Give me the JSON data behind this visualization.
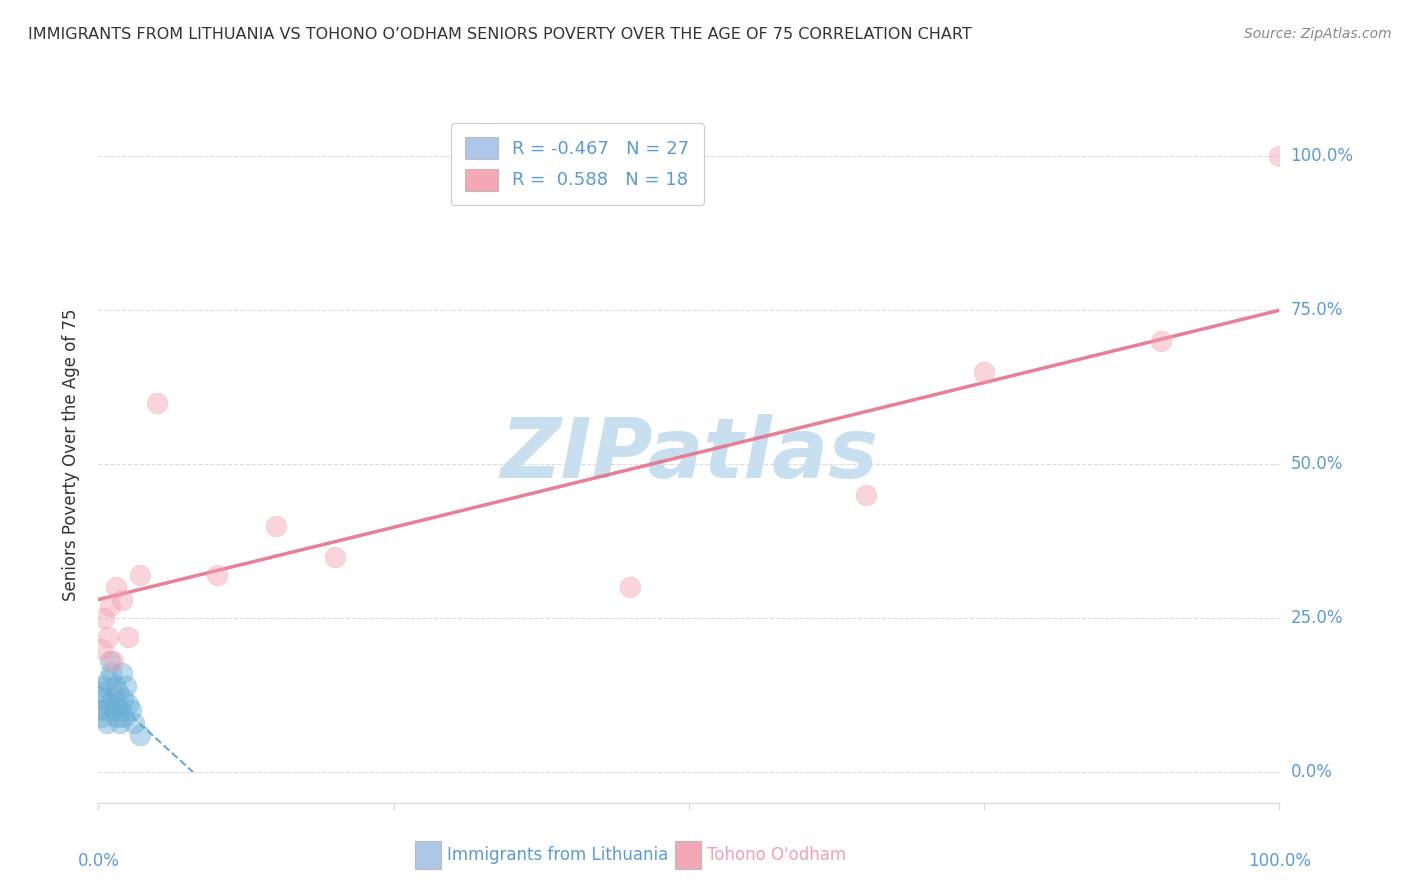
{
  "title": "IMMIGRANTS FROM LITHUANIA VS TOHONO O’ODHAM SENIORS POVERTY OVER THE AGE OF 75 CORRELATION CHART",
  "source": "Source: ZipAtlas.com",
  "ylabel": "Seniors Poverty Over the Age of 75",
  "ytick_labels": [
    "0.0%",
    "25.0%",
    "50.0%",
    "75.0%",
    "100.0%"
  ],
  "ytick_values": [
    0,
    25,
    50,
    75,
    100
  ],
  "xlim": [
    0,
    100
  ],
  "ylim": [
    -5,
    108
  ],
  "legend_entries": [
    {
      "color": "#aec6e8",
      "R": "-0.467",
      "N": "27",
      "label": "Immigrants from Lithuania"
    },
    {
      "color": "#f4a7b5",
      "R": "0.588",
      "N": "18",
      "label": "Tohono O'odham"
    }
  ],
  "blue_scatter_x": [
    0.1,
    0.2,
    0.3,
    0.4,
    0.5,
    0.6,
    0.7,
    0.8,
    0.9,
    1.0,
    1.1,
    1.2,
    1.3,
    1.4,
    1.5,
    1.6,
    1.7,
    1.8,
    1.9,
    2.0,
    2.1,
    2.2,
    2.3,
    2.5,
    2.8,
    3.0,
    3.5
  ],
  "blue_scatter_y": [
    10,
    13,
    9,
    12,
    14,
    10,
    8,
    15,
    11,
    18,
    16,
    12,
    10,
    14,
    9,
    11,
    13,
    8,
    10,
    16,
    12,
    9,
    14,
    11,
    10,
    8,
    6
  ],
  "pink_scatter_x": [
    0.3,
    0.5,
    0.8,
    1.0,
    1.2,
    1.5,
    2.0,
    2.5,
    3.5,
    5.0,
    10.0,
    15.0,
    20.0,
    45.0,
    65.0,
    75.0,
    90.0,
    100.0
  ],
  "pink_scatter_y": [
    20,
    25,
    22,
    27,
    18,
    30,
    28,
    22,
    32,
    60,
    32,
    40,
    35,
    30,
    45,
    65,
    70,
    100
  ],
  "blue_line_x": [
    0,
    8
  ],
  "blue_line_y": [
    14,
    0
  ],
  "pink_line_x": [
    0,
    100
  ],
  "pink_line_y": [
    28,
    75
  ],
  "watermark": "ZIPatlas",
  "background_color": "#ffffff",
  "scatter_alpha": 0.45,
  "scatter_size": 220,
  "blue_color": "#6baed6",
  "pink_color": "#f4a0b0",
  "blue_line_color": "#3a7dbf",
  "pink_line_color": "#e8708a",
  "title_color": "#333333",
  "axis_color": "#5b9bd5",
  "grid_color": "#d8d8d8",
  "watermark_color": "#c8dff0"
}
